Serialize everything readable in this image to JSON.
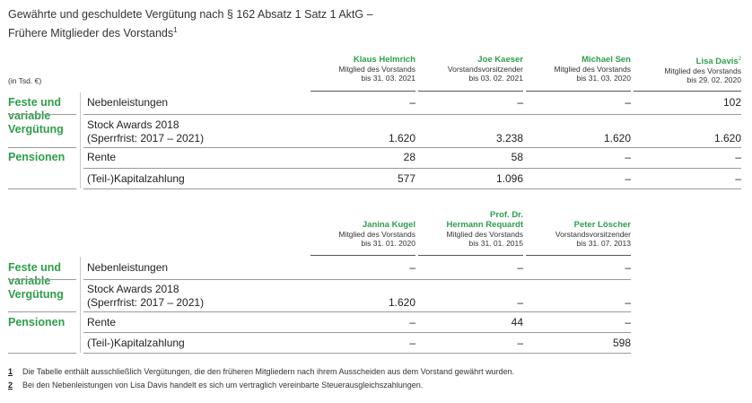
{
  "title": {
    "line1": "Gewährte und geschuldete Vergütung nach § 162 Absatz 1 Satz 1 AktG –",
    "line2": "Frühere Mitglieder des Vorstands",
    "sup": "1"
  },
  "unit": "(in Tsd. €)",
  "table1": {
    "headers": [
      {
        "name": "Klaus Helmrich",
        "sup": "",
        "role": "Mitglied des Vorstands",
        "date": "bis 31. 03. 2021"
      },
      {
        "name": "Joe Kaeser",
        "sup": "",
        "role": "Vorstandsvorsitzender",
        "date": "bis 03. 02. 2021"
      },
      {
        "name": "Michael Sen",
        "sup": "",
        "role": "Mitglied des Vorstands",
        "date": "bis 31. 03. 2020"
      },
      {
        "name": "Lisa Davis",
        "sup": "2",
        "role": "Mitglied des Vorstands",
        "date": "bis 29. 02. 2020"
      }
    ],
    "groups": [
      "Feste und",
      "variable",
      "Vergütung",
      "Pensionen"
    ],
    "rows": [
      {
        "label": "Nebenleistungen",
        "label2": "",
        "values": [
          "–",
          "–",
          "–",
          "102"
        ]
      },
      {
        "label": "Stock Awards 2018",
        "label2": "(Sperrfrist: 2017 – 2021)",
        "values": [
          "1.620",
          "3.238",
          "1.620",
          "1.620"
        ]
      },
      {
        "label": "Rente",
        "label2": "",
        "values": [
          "28",
          "58",
          "–",
          "–"
        ]
      },
      {
        "label": "(Teil-)Kapitalzahlung",
        "label2": "",
        "values": [
          "577",
          "1.096",
          "–",
          "–"
        ]
      }
    ]
  },
  "table2": {
    "headers": [
      {
        "name": "Janina Kugel",
        "name0": "",
        "role": "Mitglied des Vorstands",
        "date": "bis 31. 01. 2020"
      },
      {
        "name": "Hermann Requardt",
        "name0": "Prof. Dr.",
        "role": "Mitglied des Vorstands",
        "date": "bis 31. 01. 2015"
      },
      {
        "name": "Peter Löscher",
        "name0": "",
        "role": "Vorstandsvorsitzender",
        "date": "bis 31. 07. 2013"
      }
    ],
    "groups": [
      "Feste und",
      "variable",
      "Vergütung",
      "Pensionen"
    ],
    "rows": [
      {
        "label": "Nebenleistungen",
        "label2": "",
        "values": [
          "–",
          "–",
          "–"
        ]
      },
      {
        "label": "Stock Awards 2018",
        "label2": "(Sperrfrist: 2017 – 2021)",
        "values": [
          "1.620",
          "–",
          "–"
        ]
      },
      {
        "label": "Rente",
        "label2": "",
        "values": [
          "–",
          "44",
          "–"
        ]
      },
      {
        "label": "(Teil-)Kapitalzahlung",
        "label2": "",
        "values": [
          "–",
          "–",
          "598"
        ]
      }
    ]
  },
  "footnotes": [
    {
      "num": "1",
      "text": "Die Tabelle enthält ausschließlich Vergütungen, die den früheren Mitgliedern nach ihrem Ausscheiden aus dem Vorstand gewährt wurden."
    },
    {
      "num": "2",
      "text": "Bei den Nebenleistungen von Lisa Davis handelt es sich um vertraglich vereinbarte Steuerausgleichszahlungen."
    }
  ]
}
